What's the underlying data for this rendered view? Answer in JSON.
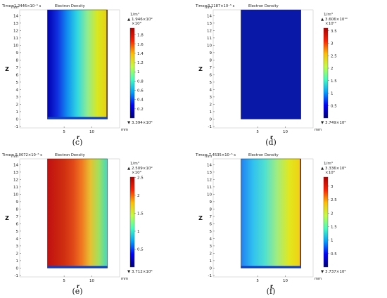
{
  "colors": {
    "low": "#0000b0",
    "cyan": "#40e0d0",
    "mid": "#d8e820",
    "high": "#c01010",
    "edge": "#8b3a1a",
    "lowband": "#1040c0"
  },
  "chart_data": [
    {
      "type": "heatmap",
      "panel_label": "(c)",
      "time_label": "Time=1.2446×10⁻⁵ s",
      "title": "Electron Density",
      "xlabel": "r",
      "ylabel": "Z",
      "x_unit": "mm",
      "y_unit": "mm",
      "xlim": [
        -3,
        15
      ],
      "ylim": [
        -1.2,
        14.8
      ],
      "x_ticks": [
        "5",
        "10"
      ],
      "y_ticks": [
        "-1",
        "0",
        "1",
        "2",
        "3",
        "4",
        "5",
        "6",
        "7",
        "8",
        "9",
        "10",
        "11",
        "12",
        "13",
        "14"
      ],
      "colorbar_unit": "1/m³",
      "colorbar_max_label": "▲ 1.946×10⁹",
      "colorbar_multiplier": "×10⁹",
      "colorbar_ticks": [
        "0.2",
        "0.4",
        "0.6",
        "0.8",
        "1",
        "1.2",
        "1.4",
        "1.6",
        "1.8"
      ],
      "colorbar_range": [
        0,
        1.946
      ],
      "colorbar_min_label": "▼ 3.394×10⁶",
      "gradient": [
        "#0000b0",
        "#1030e0",
        "#1090f0",
        "#30d8e0",
        "#90ec90",
        "#d8e820",
        "#e8d010"
      ],
      "bottom_band": true,
      "right_edge": true
    },
    {
      "type": "heatmap",
      "panel_label": "(d)",
      "time_label": "Time=3.1187×10⁻⁵ s",
      "title": "Electron Density",
      "xlabel": "r",
      "ylabel": "Z",
      "x_unit": "mm",
      "y_unit": "mm",
      "xlim": [
        -3,
        15
      ],
      "ylim": [
        -1.2,
        14.8
      ],
      "x_ticks": [
        "5",
        "10"
      ],
      "y_ticks": [
        "-1",
        "0",
        "1",
        "2",
        "3",
        "4",
        "5",
        "6",
        "7",
        "8",
        "9",
        "10",
        "11",
        "12",
        "13",
        "14"
      ],
      "colorbar_unit": "1/m³",
      "colorbar_max_label": "▲ 3.606×10¹⁰",
      "colorbar_multiplier": "×10¹⁰",
      "colorbar_ticks": [
        "0.5",
        "1",
        "1.5",
        "2",
        "2.5",
        "3",
        "3.5"
      ],
      "colorbar_range": [
        0,
        3.606
      ],
      "colorbar_min_label": "▼ 3.749×10⁶",
      "gradient": [
        "#0a18a8",
        "#0a18a8",
        "#0a18a8",
        "#0a18a8",
        "#0a18a8",
        "#0a18a8",
        "#0a18a8"
      ],
      "bottom_band": false,
      "right_edge": false
    },
    {
      "type": "heatmap",
      "panel_label": "(e)",
      "time_label": "Time= 5.0072×10⁻⁵ s",
      "title": "Electron Density",
      "xlabel": "r",
      "ylabel": "Z",
      "x_unit": "mm",
      "y_unit": "mm",
      "xlim": [
        -3,
        15
      ],
      "ylim": [
        -1.2,
        14.8
      ],
      "x_ticks": [
        "5",
        "10"
      ],
      "y_ticks": [
        "-1",
        "0",
        "1",
        "2",
        "3",
        "4",
        "5",
        "6",
        "7",
        "8",
        "9",
        "10",
        "11",
        "12",
        "13",
        "14"
      ],
      "colorbar_unit": "1/m³",
      "colorbar_max_label": "▲ 2.509×10⁹",
      "colorbar_multiplier": "×10⁹",
      "colorbar_ticks": [
        "0.5",
        "1",
        "1.5",
        "2",
        "2.5"
      ],
      "colorbar_range": [
        0,
        2.509
      ],
      "colorbar_min_label": "▼ 3.712×10⁶",
      "gradient": [
        "#c01010",
        "#c82010",
        "#d03010",
        "#e04818",
        "#f07820",
        "#e8c030",
        "#a0e060",
        "#40d8c0"
      ],
      "bottom_band": true,
      "right_edge": false
    },
    {
      "type": "heatmap",
      "panel_label": "(f)",
      "time_label": "Time= 7.4535×10⁻⁵ s",
      "title": "Electron Density",
      "xlabel": "r",
      "ylabel": "Z",
      "x_unit": "mm",
      "y_unit": "mm",
      "xlim": [
        -3,
        15
      ],
      "ylim": [
        -1.2,
        14.8
      ],
      "x_ticks": [
        "5",
        "10"
      ],
      "y_ticks": [
        "-1",
        "0",
        "1",
        "2",
        "3",
        "4",
        "5",
        "6",
        "7",
        "8",
        "9",
        "10",
        "11",
        "12",
        "13",
        "14"
      ],
      "colorbar_unit": "1/m³",
      "colorbar_max_label": "▲ 3.336×10⁹",
      "colorbar_multiplier": "×10⁹",
      "colorbar_ticks": [
        "0.5",
        "1",
        "1.5",
        "2",
        "2.5",
        "3"
      ],
      "colorbar_range": [
        0,
        3.336
      ],
      "colorbar_min_label": "▼ 3.737×10⁶",
      "gradient": [
        "#2080f0",
        "#30c0f0",
        "#50e0d0",
        "#a0ec80",
        "#e0e820",
        "#f0d010"
      ],
      "bottom_band": true,
      "right_edge": true
    }
  ]
}
